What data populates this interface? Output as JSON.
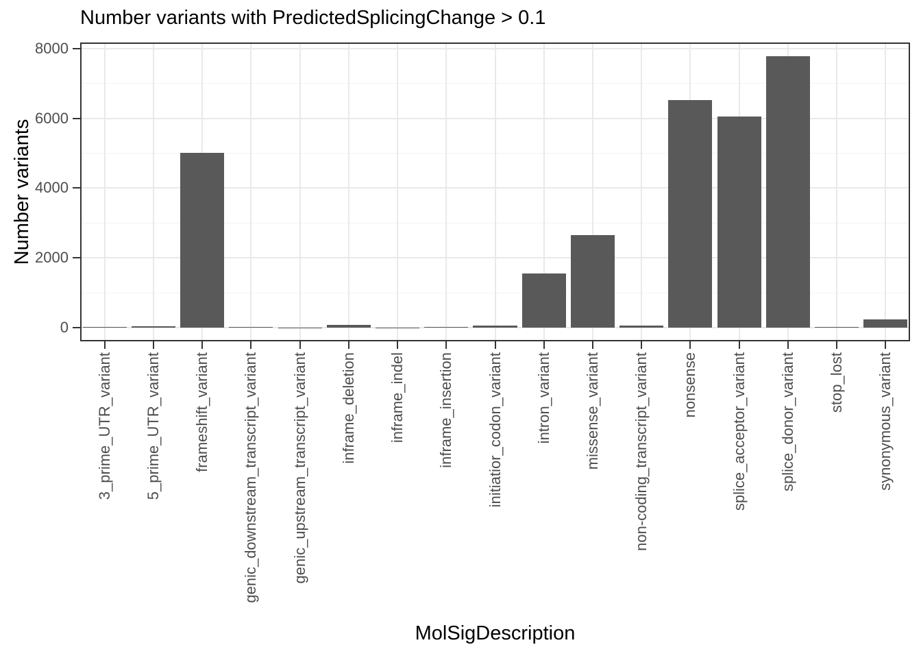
{
  "chart_data": {
    "type": "bar",
    "title": "Number variants with PredictedSplicingChange > 0.1",
    "xlabel": "MolSigDescription",
    "ylabel": "Number variants",
    "categories": [
      "3_prime_UTR_variant",
      "5_prime_UTR_variant",
      "frameshift_variant",
      "genic_downstream_transcript_variant",
      "genic_upstream_transcript_variant",
      "inframe_deletion",
      "inframe_indel",
      "inframe_insertion",
      "initiatior_codon_variant",
      "intron_variant",
      "missense_variant",
      "non-coding_transcript_variant",
      "nonsense",
      "splice_acceptor_variant",
      "splice_donor_variant",
      "stop_lost",
      "synonymous_variant"
    ],
    "values": [
      30,
      40,
      5010,
      25,
      5,
      90,
      4,
      15,
      65,
      1555,
      2660,
      65,
      6520,
      6050,
      7780,
      25,
      235
    ],
    "y_ticks": [
      0,
      2000,
      4000,
      6000,
      8000
    ],
    "y_minor_ticks": [
      1000,
      3000,
      5000,
      7000
    ],
    "ylim": [
      0,
      8000
    ],
    "grid": true,
    "legend": "none",
    "bar_color": "#595959",
    "panel_border_color": "#333333",
    "grid_major_color": "#e9e9e9",
    "grid_minor_color": "#f3f3f3",
    "axis_text_color": "#4d4d4d"
  }
}
